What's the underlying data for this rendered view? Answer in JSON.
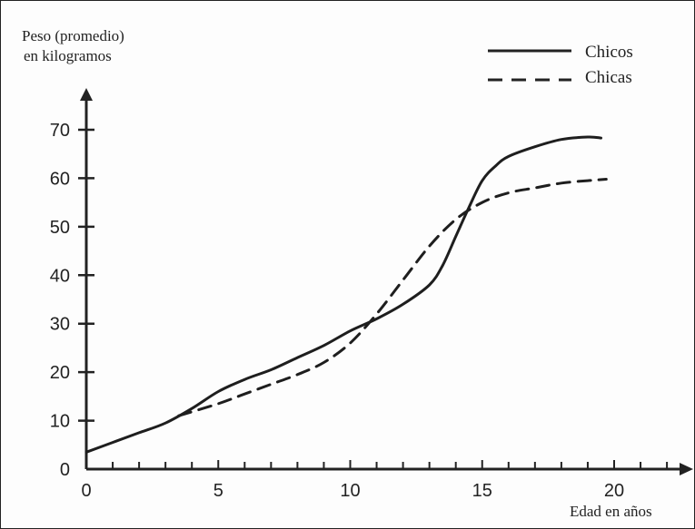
{
  "chart_data": {
    "type": "line",
    "ylabel_line1": "Peso (promedio)",
    "ylabel_line2": "en kilogramos",
    "xlabel": "Edad en años",
    "xlim": [
      0,
      23
    ],
    "ylim": [
      0,
      75
    ],
    "x_ticks": [
      0,
      5,
      10,
      15,
      20
    ],
    "y_ticks": [
      0,
      10,
      20,
      30,
      40,
      50,
      60,
      70
    ],
    "x_minor_step": 1,
    "grid": false,
    "legend_position": "top-right",
    "series": [
      {
        "name": "Chicos",
        "style": "solid",
        "points": [
          [
            0,
            3.5
          ],
          [
            1,
            5.5
          ],
          [
            2,
            7.5
          ],
          [
            3,
            9.5
          ],
          [
            4,
            12.5
          ],
          [
            5,
            16
          ],
          [
            6,
            18.5
          ],
          [
            7,
            20.5
          ],
          [
            8,
            23
          ],
          [
            9,
            25.5
          ],
          [
            10,
            28.5
          ],
          [
            11,
            31
          ],
          [
            12,
            34
          ],
          [
            13,
            38
          ],
          [
            13.5,
            42
          ],
          [
            14,
            48
          ],
          [
            14.5,
            54
          ],
          [
            15,
            59.5
          ],
          [
            15.5,
            62.5
          ],
          [
            16,
            64.5
          ],
          [
            17,
            66.5
          ],
          [
            18,
            68
          ],
          [
            19,
            68.5
          ],
          [
            19.5,
            68.3
          ]
        ]
      },
      {
        "name": "Chicas",
        "style": "dashed",
        "points": [
          [
            3.5,
            11
          ],
          [
            5,
            13.5
          ],
          [
            6,
            15.5
          ],
          [
            7,
            17.5
          ],
          [
            8,
            19.5
          ],
          [
            9,
            22
          ],
          [
            10,
            26
          ],
          [
            11,
            32
          ],
          [
            12,
            39
          ],
          [
            13,
            46
          ],
          [
            14,
            51.5
          ],
          [
            15,
            55
          ],
          [
            16,
            57
          ],
          [
            17,
            58
          ],
          [
            18,
            59
          ],
          [
            19,
            59.5
          ],
          [
            19.7,
            59.8
          ]
        ]
      }
    ]
  }
}
